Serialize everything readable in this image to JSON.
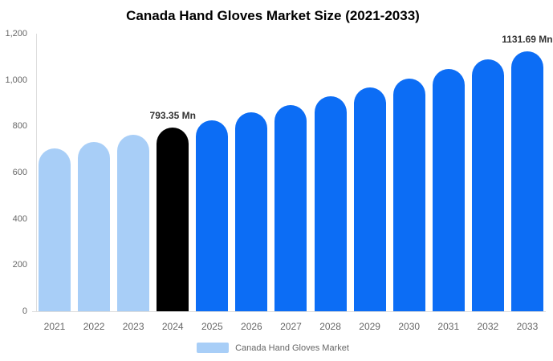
{
  "header": {
    "title": "Canada Hand Gloves Market Size (2021-2033)"
  },
  "legend": {
    "label": "Canada Hand Gloves Market",
    "swatch_color": "#a8cef7"
  },
  "colors": {
    "past_bar_light_blue": "#a8cef7",
    "highlight_bar_black": "#000000",
    "forecast_bar_blue": "#0c6df5",
    "axis_line": "#dddddd",
    "tick_text": "#666666",
    "value_label_text": "#333333"
  },
  "chart_data": {
    "type": "bar",
    "title": "Canada Hand Gloves Market Size (2021-2033)",
    "categories": [
      "2021",
      "2022",
      "2023",
      "2024",
      "2025",
      "2026",
      "2027",
      "2028",
      "2029",
      "2030",
      "2031",
      "2032",
      "2033"
    ],
    "values": [
      705,
      733,
      763,
      793.35,
      825,
      859,
      893,
      929,
      967,
      1006,
      1046,
      1088,
      1131.69
    ],
    "ylim": [
      0,
      1200
    ],
    "yticks": [
      {
        "value": 0,
        "label": "0"
      },
      {
        "value": 200,
        "label": "200"
      },
      {
        "value": 400,
        "label": "400"
      },
      {
        "value": 600,
        "label": "600"
      },
      {
        "value": 800,
        "label": "800"
      },
      {
        "value": 1000,
        "label": "1,000"
      },
      {
        "value": 1200,
        "label": "1,200"
      }
    ],
    "bar_colors": [
      "#a8cef7",
      "#a8cef7",
      "#a8cef7",
      "#000000",
      "#0c6df5",
      "#0c6df5",
      "#0c6df5",
      "#0c6df5",
      "#0c6df5",
      "#0c6df5",
      "#0c6df5",
      "#0c6df5",
      "#0c6df5"
    ],
    "value_labels": [
      {
        "index": 3,
        "text": "793.35 Mn"
      },
      {
        "index": 12,
        "text": "1131.69 Mn"
      }
    ],
    "grid": false,
    "legend_position": "bottom",
    "legend_entries": [
      "Canada Hand Gloves Market"
    ]
  }
}
